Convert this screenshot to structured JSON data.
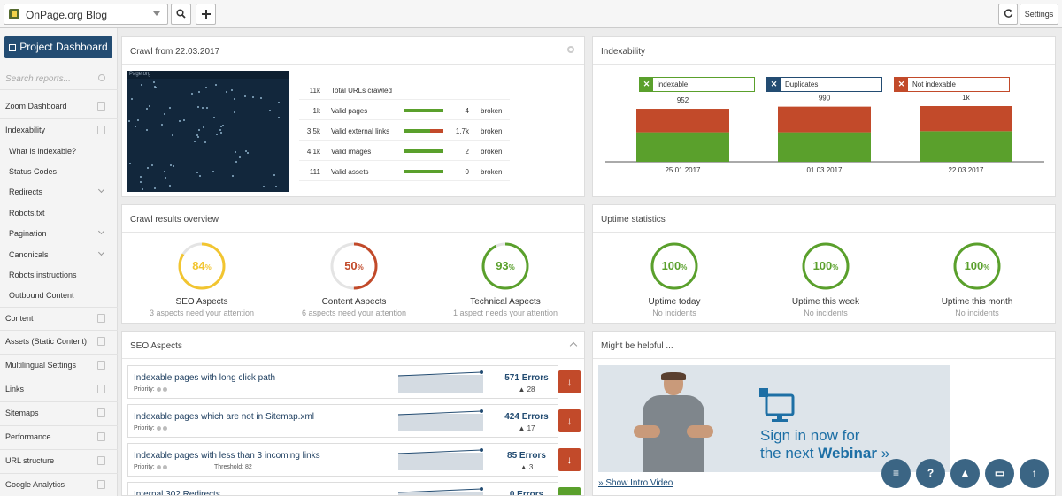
{
  "topbar": {
    "project": "OnPage.org Blog",
    "settings": "Settings",
    "search_icon": "magnifier",
    "add_icon": "plus",
    "refresh_icon": "refresh"
  },
  "sidebar": {
    "project_dashboard": "Project Dashboard",
    "search_placeholder": "Search reports...",
    "items": [
      {
        "label": "Zoom Dashboard",
        "icon": "home-icon"
      },
      {
        "label": "Indexability",
        "icon": "book-icon"
      },
      {
        "label": "What is indexable?"
      },
      {
        "label": "Status Codes"
      },
      {
        "label": "Redirects"
      },
      {
        "label": "Robots.txt"
      },
      {
        "label": "Pagination"
      },
      {
        "label": "Canonicals"
      },
      {
        "label": "Robots instructions"
      },
      {
        "label": "Outbound Content"
      },
      {
        "label": "Content",
        "icon": "file-icon"
      },
      {
        "label": "Assets (Static Content)",
        "icon": "assets-icon"
      },
      {
        "label": "Multilingual Settings",
        "icon": "chat-icon"
      },
      {
        "label": "Links",
        "icon": "link-icon"
      },
      {
        "label": "Sitemaps",
        "icon": "sitemap-icon"
      },
      {
        "label": "Performance",
        "icon": "gauge-icon"
      },
      {
        "label": "URL structure",
        "icon": "bookmark-icon"
      },
      {
        "label": "Google Analytics",
        "icon": "pie-icon"
      }
    ]
  },
  "crawl": {
    "title": "Crawl from 22.03.2017",
    "screenshot_label": "Page.org",
    "rows": [
      {
        "count": "11k",
        "label": "Total URLs crawled",
        "broken": "",
        "broken_label": "",
        "valid_share": null
      },
      {
        "count": "1k",
        "label": "Valid pages",
        "broken": "4",
        "broken_label": "broken",
        "valid_share": 1.0
      },
      {
        "count": "3.5k",
        "label": "Valid external links",
        "broken": "1.7k",
        "broken_label": "broken",
        "valid_share": 0.66
      },
      {
        "count": "4.1k",
        "label": "Valid images",
        "broken": "2",
        "broken_label": "broken",
        "valid_share": 1.0
      },
      {
        "count": "111",
        "label": "Valid assets",
        "broken": "0",
        "broken_label": "broken",
        "valid_share": 1.0
      }
    ]
  },
  "indexability": {
    "title": "Indexability",
    "legend": [
      {
        "label": "indexable",
        "color": "#5aa02c"
      },
      {
        "label": "Duplicates",
        "color": "#234c72"
      },
      {
        "label": "Not indexable",
        "color": "#c24a2a"
      }
    ]
  },
  "chart_data": {
    "type": "bar",
    "categories": [
      "25.01.2017",
      "01.03.2017",
      "22.03.2017"
    ],
    "totals_labels": [
      "952",
      "990",
      "1k"
    ],
    "series": [
      {
        "name": "indexable",
        "values": [
          530,
          530,
          550
        ],
        "color": "#5aa02c"
      },
      {
        "name": "Not indexable",
        "values": [
          422,
          460,
          450
        ],
        "color": "#c24a2a"
      }
    ],
    "ylim": [
      0,
      1000
    ],
    "title": "",
    "xlabel": "",
    "ylabel": ""
  },
  "crawl_results": {
    "title": "Crawl results overview",
    "gauges": [
      {
        "value": 84,
        "display": "84",
        "unit": "%",
        "label": "SEO Aspects",
        "sub": "3 aspects need your attention",
        "color": "#f2c530"
      },
      {
        "value": 50,
        "display": "50",
        "unit": "%",
        "label": "Content Aspects",
        "sub": "6 aspects need your attention",
        "color": "#c24a2a"
      },
      {
        "value": 93,
        "display": "93",
        "unit": "%",
        "label": "Technical Aspects",
        "sub": "1 aspect needs your attention",
        "color": "#5aa02c"
      }
    ]
  },
  "uptime": {
    "title": "Uptime statistics",
    "gauges": [
      {
        "value": 100,
        "display": "100",
        "unit": "%",
        "label": "Uptime today",
        "sub": "No incidents",
        "color": "#5aa02c"
      },
      {
        "value": 100,
        "display": "100",
        "unit": "%",
        "label": "Uptime this week",
        "sub": "No incidents",
        "color": "#5aa02c"
      },
      {
        "value": 100,
        "display": "100",
        "unit": "%",
        "label": "Uptime this month",
        "sub": "No incidents",
        "color": "#5aa02c"
      }
    ]
  },
  "seo_aspects": {
    "title": "SEO Aspects",
    "rows": [
      {
        "title": "Indexable pages with long click path",
        "priority": "Priority:",
        "threshold": "",
        "errors": "571 Errors",
        "delta": "28",
        "action": "down",
        "color": "#c24a2a"
      },
      {
        "title": "Indexable pages which are not in Sitemap.xml",
        "priority": "Priority:",
        "threshold": "",
        "errors": "424 Errors",
        "delta": "17",
        "action": "down",
        "color": "#c24a2a"
      },
      {
        "title": "Indexable pages with less than 3 incoming links",
        "priority": "Priority:",
        "threshold": "Threshold: 82",
        "errors": "85 Errors",
        "delta": "3",
        "action": "down",
        "color": "#c24a2a"
      },
      {
        "title": "Internal 302 Redirects",
        "priority": "",
        "threshold": "",
        "errors": "0 Errors",
        "delta": "",
        "action": "check",
        "color": "#5aa02c"
      }
    ]
  },
  "helpful": {
    "title": "Might be helpful ...",
    "banner_line1": "Sign in now for",
    "banner_line2_prefix": "the next ",
    "banner_line2_bold": "Webinar",
    "banner_line2_suffix": " »",
    "link": "» Show Intro Video"
  },
  "fabs": [
    "database-icon",
    "question-icon",
    "graduation-icon",
    "pdf-icon",
    "arrow-up-icon"
  ]
}
